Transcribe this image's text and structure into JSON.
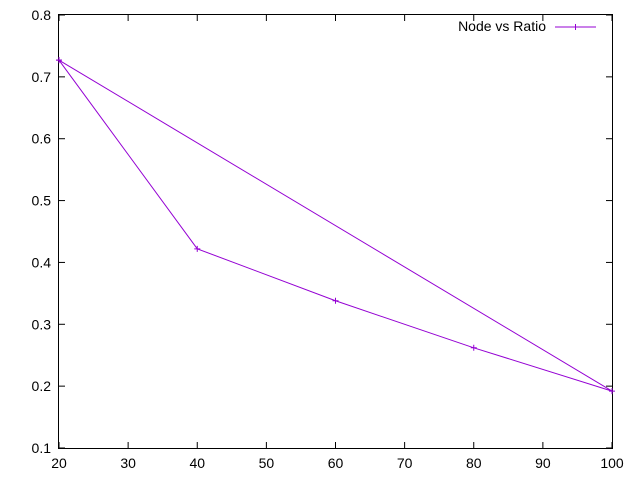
{
  "chart_data": {
    "type": "line",
    "title": "",
    "xlabel": "",
    "ylabel": "",
    "xlim": [
      20,
      100
    ],
    "ylim": [
      0.1,
      0.8
    ],
    "x_ticks": [
      20,
      30,
      40,
      50,
      60,
      70,
      80,
      90,
      100
    ],
    "y_ticks": [
      0.1,
      0.2,
      0.3,
      0.4,
      0.5,
      0.6,
      0.7,
      0.8
    ],
    "x_tick_labels": [
      "20",
      "30",
      "40",
      "50",
      "60",
      "70",
      "80",
      "90",
      "100"
    ],
    "y_tick_labels": [
      "0.1",
      "0.2",
      "0.3",
      "0.4",
      "0.5",
      "0.6",
      "0.7",
      "0.8"
    ],
    "grid": false,
    "legend": "top-right",
    "series": [
      {
        "name": "Node vs Ratio",
        "color": "#9400d3",
        "marker": "plus",
        "x": [
          20,
          40,
          60,
          80,
          100,
          20
        ],
        "y": [
          0.727,
          0.422,
          0.338,
          0.262,
          0.192,
          0.727
        ]
      }
    ]
  }
}
